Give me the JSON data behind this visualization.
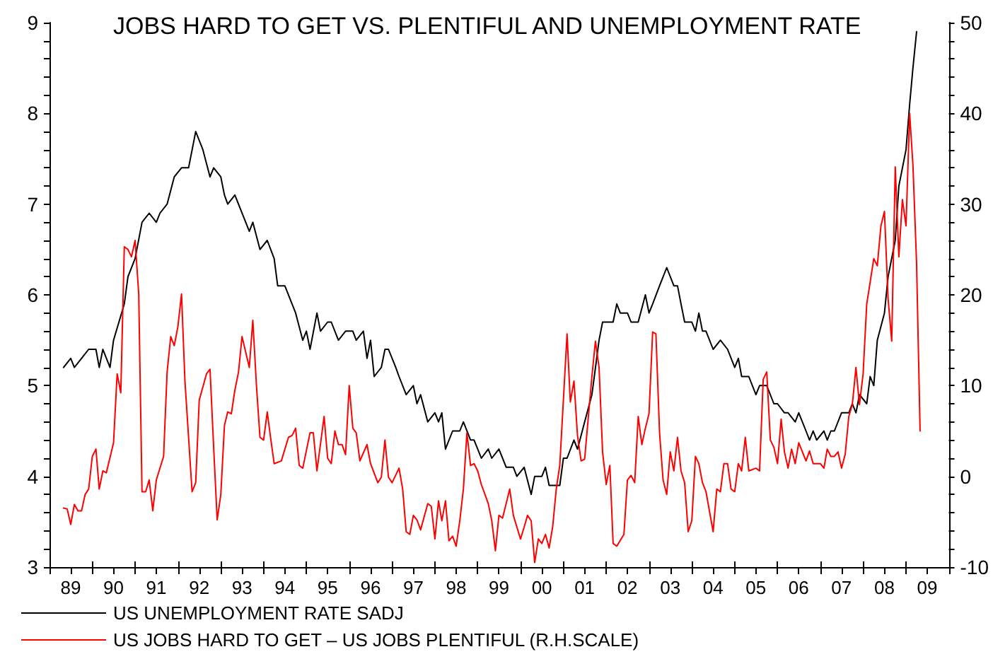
{
  "chart_data": {
    "type": "line",
    "title": "JOBS HARD TO GET VS. PLENTIFUL AND UNEMPLOYMENT RATE",
    "xlim": [
      "1989-01",
      "2010-01"
    ],
    "xticks": [
      {
        "value": "1989-01",
        "label": null
      },
      {
        "value": "1989-07",
        "label": "89"
      },
      {
        "value": "1990-01",
        "label": null
      },
      {
        "value": "1990-07",
        "label": "90"
      },
      {
        "value": "1991-01",
        "label": null
      },
      {
        "value": "1991-07",
        "label": "91"
      },
      {
        "value": "1992-01",
        "label": null
      },
      {
        "value": "1992-07",
        "label": "92"
      },
      {
        "value": "1993-01",
        "label": null
      },
      {
        "value": "1993-07",
        "label": "93"
      },
      {
        "value": "1994-01",
        "label": null
      },
      {
        "value": "1994-07",
        "label": "94"
      },
      {
        "value": "1995-01",
        "label": null
      },
      {
        "value": "1995-07",
        "label": "95"
      },
      {
        "value": "1996-01",
        "label": null
      },
      {
        "value": "1996-07",
        "label": "96"
      },
      {
        "value": "1997-01",
        "label": null
      },
      {
        "value": "1997-07",
        "label": "97"
      },
      {
        "value": "1998-01",
        "label": null
      },
      {
        "value": "1998-07",
        "label": "98"
      },
      {
        "value": "1999-01",
        "label": null
      },
      {
        "value": "1999-07",
        "label": "99"
      },
      {
        "value": "2000-01",
        "label": null
      },
      {
        "value": "2000-07",
        "label": "00"
      },
      {
        "value": "2001-01",
        "label": null
      },
      {
        "value": "2001-07",
        "label": "01"
      },
      {
        "value": "2002-01",
        "label": null
      },
      {
        "value": "2002-07",
        "label": "02"
      },
      {
        "value": "2003-01",
        "label": null
      },
      {
        "value": "2003-07",
        "label": "03"
      },
      {
        "value": "2004-01",
        "label": null
      },
      {
        "value": "2004-07",
        "label": "04"
      },
      {
        "value": "2005-01",
        "label": null
      },
      {
        "value": "2005-07",
        "label": "05"
      },
      {
        "value": "2006-01",
        "label": null
      },
      {
        "value": "2006-07",
        "label": "06"
      },
      {
        "value": "2007-01",
        "label": null
      },
      {
        "value": "2007-07",
        "label": "07"
      },
      {
        "value": "2008-01",
        "label": null
      },
      {
        "value": "2008-07",
        "label": "08"
      },
      {
        "value": "2009-01",
        "label": null
      },
      {
        "value": "2009-07",
        "label": "09"
      },
      {
        "value": "2010-01",
        "label": null
      }
    ],
    "ylim": [
      3,
      9
    ],
    "yticks": [
      3,
      {
        "value": 3.2,
        "label": null
      },
      {
        "value": 3.4,
        "label": null
      },
      {
        "value": 3.6,
        "label": null
      },
      {
        "value": 3.8,
        "label": null
      },
      4,
      {
        "value": 4.2,
        "label": null
      },
      {
        "value": 4.4,
        "label": null
      },
      {
        "value": 4.6,
        "label": null
      },
      {
        "value": 4.8,
        "label": null
      },
      5,
      {
        "value": 5.2,
        "label": null
      },
      {
        "value": 5.4,
        "label": null
      },
      {
        "value": 5.6,
        "label": null
      },
      {
        "value": 5.8,
        "label": null
      },
      6,
      {
        "value": 6.2,
        "label": null
      },
      {
        "value": 6.4,
        "label": null
      },
      {
        "value": 6.6,
        "label": null
      },
      {
        "value": 6.8,
        "label": null
      },
      7,
      {
        "value": 7.2,
        "label": null
      },
      {
        "value": 7.4,
        "label": null
      },
      {
        "value": 7.6,
        "label": null
      },
      {
        "value": 7.8,
        "label": null
      },
      8,
      {
        "value": 8.2,
        "label": null
      },
      {
        "value": 8.4,
        "label": null
      },
      {
        "value": 8.6,
        "label": null
      },
      {
        "value": 8.8,
        "label": null
      },
      9
    ],
    "y2lim": [
      -10,
      50
    ],
    "y2ticks": [
      -10,
      {
        "value": -8,
        "label": null
      },
      {
        "value": -6,
        "label": null
      },
      {
        "value": -4,
        "label": null
      },
      {
        "value": -2,
        "label": null
      },
      0,
      {
        "value": 2,
        "label": null
      },
      {
        "value": 4,
        "label": null
      },
      {
        "value": 6,
        "label": null
      },
      {
        "value": 8,
        "label": null
      },
      10,
      {
        "value": 12,
        "label": null
      },
      {
        "value": 14,
        "label": null
      },
      {
        "value": 16,
        "label": null
      },
      {
        "value": 18,
        "label": null
      },
      20,
      {
        "value": 22,
        "label": null
      },
      {
        "value": 24,
        "label": null
      },
      {
        "value": 26,
        "label": null
      },
      {
        "value": 28,
        "label": null
      },
      30,
      {
        "value": 32,
        "label": null
      },
      {
        "value": 34,
        "label": null
      },
      {
        "value": 36,
        "label": null
      },
      {
        "value": 38,
        "label": null
      },
      40,
      {
        "value": 42,
        "label": null
      },
      {
        "value": 44,
        "label": null
      },
      {
        "value": 46,
        "label": null
      },
      {
        "value": 48,
        "label": null
      },
      50
    ],
    "grid": false,
    "legend": "bottom left",
    "marker": "none",
    "line_style": "solid",
    "series": [
      {
        "name": "US UNEMPLOYMENT RATE SADJ",
        "color": "#000000",
        "x": [
          "1989-05",
          "1989-07",
          "1989-08",
          "1989-10",
          "1989-12",
          "1990-02",
          "1990-03",
          "1990-04",
          "1990-06",
          "1990-07",
          "1990-10",
          "1990-11",
          "1991-01",
          "1991-03",
          "1991-05",
          "1991-07",
          "1991-08",
          "1991-10",
          "1991-12",
          "1992-02",
          "1992-04",
          "1992-06",
          "1992-08",
          "1992-10",
          "1992-11",
          "1993-01",
          "1993-02",
          "1993-03",
          "1993-05",
          "1993-09",
          "1993-10",
          "1993-12",
          "1994-02",
          "1994-04",
          "1994-05",
          "1994-07",
          "1994-10",
          "1994-12",
          "1995-01",
          "1995-02",
          "1995-04",
          "1995-05",
          "1995-07",
          "1995-08",
          "1995-10",
          "1995-12",
          "1996-02",
          "1996-03",
          "1996-05",
          "1996-06",
          "1996-07",
          "1996-08",
          "1996-10",
          "1996-11",
          "1996-12",
          "1997-02",
          "1997-03",
          "1997-05",
          "1997-07",
          "1997-08",
          "1997-09",
          "1997-11",
          "1998-01",
          "1998-02",
          "1998-03",
          "1998-04",
          "1998-06",
          "1998-08",
          "1998-09",
          "1998-11",
          "1998-12",
          "1999-01",
          "1999-02",
          "1999-04",
          "1999-05",
          "1999-07",
          "1999-09",
          "1999-11",
          "1999-12",
          "2000-02",
          "2000-04",
          "2000-05",
          "2000-07",
          "2000-08",
          "2000-09",
          "2000-12",
          "2001-01",
          "2001-02",
          "2001-04",
          "2001-05",
          "2001-07",
          "2001-09",
          "2001-11",
          "2001-12",
          "2002-03",
          "2002-04",
          "2002-05",
          "2002-07",
          "2002-08",
          "2002-10",
          "2002-12",
          "2003-01",
          "2003-02",
          "2003-04",
          "2003-06",
          "2003-08",
          "2003-09",
          "2003-10",
          "2003-11",
          "2004-01",
          "2004-02",
          "2004-03",
          "2004-04",
          "2004-05",
          "2004-07",
          "2004-09",
          "2004-11",
          "2005-01",
          "2005-02",
          "2005-03",
          "2005-05",
          "2005-07",
          "2005-08",
          "2005-10",
          "2005-12",
          "2006-01",
          "2006-03",
          "2006-04",
          "2006-06",
          "2006-07",
          "2006-09",
          "2006-10",
          "2006-11",
          "2006-12",
          "2007-02",
          "2007-03",
          "2007-04",
          "2007-05",
          "2007-07",
          "2007-09",
          "2007-10",
          "2007-11",
          "2007-12",
          "2008-02",
          "2008-03",
          "2008-04",
          "2008-05",
          "2008-07",
          "2008-08",
          "2008-10",
          "2008-11",
          "2009-01",
          "2009-02",
          "2009-03",
          "2009-04"
        ],
        "values": [
          5.2,
          5.3,
          5.2,
          5.3,
          5.4,
          5.4,
          5.2,
          5.4,
          5.2,
          5.5,
          5.9,
          6.2,
          6.4,
          6.8,
          6.9,
          6.8,
          6.9,
          7.0,
          7.3,
          7.4,
          7.4,
          7.8,
          7.6,
          7.3,
          7.4,
          7.3,
          7.1,
          7.0,
          7.1,
          6.7,
          6.8,
          6.5,
          6.6,
          6.4,
          6.1,
          6.1,
          5.8,
          5.5,
          5.6,
          5.4,
          5.8,
          5.6,
          5.7,
          5.7,
          5.5,
          5.6,
          5.6,
          5.5,
          5.6,
          5.3,
          5.5,
          5.1,
          5.2,
          5.4,
          5.4,
          5.2,
          5.1,
          4.9,
          5.0,
          4.8,
          4.9,
          4.6,
          4.7,
          4.6,
          4.7,
          4.3,
          4.5,
          4.5,
          4.6,
          4.4,
          4.4,
          4.3,
          4.2,
          4.3,
          4.2,
          4.3,
          4.1,
          4.1,
          4.0,
          4.1,
          3.8,
          4.0,
          4.0,
          4.1,
          3.9,
          3.9,
          4.2,
          4.2,
          4.4,
          4.3,
          4.6,
          4.9,
          5.5,
          5.7,
          5.7,
          5.9,
          5.8,
          5.8,
          5.7,
          5.7,
          6.0,
          5.8,
          5.9,
          6.1,
          6.3,
          6.1,
          6.1,
          5.9,
          5.7,
          5.7,
          5.6,
          5.8,
          5.6,
          5.6,
          5.4,
          5.5,
          5.4,
          5.2,
          5.3,
          5.1,
          5.1,
          4.9,
          5.0,
          5.0,
          4.8,
          4.8,
          4.7,
          4.7,
          4.6,
          4.7,
          4.5,
          4.4,
          4.5,
          4.4,
          4.5,
          4.4,
          4.5,
          4.5,
          4.7,
          4.7,
          4.8,
          4.7,
          4.9,
          4.8,
          5.1,
          5.0,
          5.5,
          5.8,
          6.2,
          6.6,
          7.2,
          7.6,
          8.1,
          8.5,
          8.9
        ]
      },
      {
        "name": "US JOBS HARD TO GET – US JOBS PLENTIFUL (R.H.SCALE)",
        "color": "#ff0000",
        "axis": "y2",
        "x": [
          "1989-05",
          "1989-06",
          "1989-07",
          "1989-08",
          "1989-09",
          "1989-10",
          "1989-11",
          "1989-12",
          "1990-01",
          "1990-02",
          "1990-03",
          "1990-04",
          "1990-05",
          "1990-07",
          "1990-08",
          "1990-09",
          "1990-10",
          "1990-11",
          "1990-12",
          "1991-01",
          "1991-02",
          "1991-03",
          "1991-04",
          "1991-05",
          "1991-06",
          "1991-07",
          "1991-09",
          "1991-10",
          "1991-11",
          "1991-12",
          "1992-01",
          "1992-02",
          "1992-03",
          "1992-05",
          "1992-06",
          "1992-07",
          "1992-09",
          "1992-10",
          "1992-11",
          "1992-12",
          "1993-01",
          "1993-02",
          "1993-03",
          "1993-04",
          "1993-05",
          "1993-06",
          "1993-07",
          "1993-09",
          "1993-10",
          "1993-11",
          "1993-12",
          "1994-01",
          "1994-02",
          "1994-03",
          "1994-04",
          "1994-06",
          "1994-08",
          "1994-09",
          "1994-10",
          "1994-11",
          "1994-12",
          "1995-02",
          "1995-03",
          "1995-04",
          "1995-06",
          "1995-07",
          "1995-08",
          "1995-09",
          "1995-10",
          "1995-11",
          "1995-12",
          "1996-01",
          "1996-02",
          "1996-03",
          "1996-04",
          "1996-06",
          "1996-07",
          "1996-09",
          "1996-10",
          "1996-11",
          "1996-12",
          "1997-01",
          "1997-03",
          "1997-04",
          "1997-05",
          "1997-06",
          "1997-07",
          "1997-08",
          "1997-09",
          "1997-11",
          "1997-12",
          "1998-01",
          "1998-02",
          "1998-03",
          "1998-04",
          "1998-05",
          "1998-06",
          "1998-07",
          "1998-08",
          "1998-09",
          "1998-10",
          "1998-11",
          "1998-12",
          "1999-01",
          "1999-02",
          "1999-04",
          "1999-05",
          "1999-06",
          "1999-07",
          "1999-08",
          "1999-10",
          "1999-11",
          "2000-01",
          "2000-02",
          "2000-03",
          "2000-04",
          "2000-05",
          "2000-06",
          "2000-07",
          "2000-08",
          "2000-09",
          "2000-10",
          "2000-11",
          "2000-12",
          "2001-02",
          "2001-03",
          "2001-04",
          "2001-05",
          "2001-06",
          "2001-07",
          "2001-09",
          "2001-10",
          "2001-11",
          "2001-12",
          "2002-01",
          "2002-02",
          "2002-03",
          "2002-04",
          "2002-06",
          "2002-07",
          "2002-08",
          "2002-09",
          "2002-10",
          "2002-11",
          "2002-12",
          "2003-01",
          "2003-02",
          "2003-03",
          "2003-04",
          "2003-05",
          "2003-06",
          "2003-07",
          "2003-08",
          "2003-09",
          "2003-10",
          "2003-11",
          "2003-12",
          "2004-01",
          "2004-02",
          "2004-03",
          "2004-04",
          "2004-05",
          "2004-07",
          "2004-08",
          "2004-09",
          "2004-10",
          "2004-11",
          "2004-12",
          "2005-01",
          "2005-02",
          "2005-03",
          "2005-04",
          "2005-05",
          "2005-07",
          "2005-08",
          "2005-09",
          "2005-10",
          "2005-11",
          "2005-12",
          "2006-01",
          "2006-02",
          "2006-03",
          "2006-04",
          "2006-05",
          "2006-06",
          "2006-07",
          "2006-09",
          "2006-10",
          "2006-11",
          "2007-01",
          "2007-02",
          "2007-03",
          "2007-04",
          "2007-05",
          "2007-06",
          "2007-07",
          "2007-08",
          "2007-09",
          "2007-10",
          "2007-11",
          "2007-12",
          "2008-01",
          "2008-02",
          "2008-03",
          "2008-04",
          "2008-05",
          "2008-06",
          "2008-07",
          "2008-08",
          "2008-09",
          "2008-10",
          "2008-11",
          "2008-12",
          "2009-01",
          "2009-02",
          "2009-03",
          "2009-04",
          "2009-05"
        ],
        "values": [
          -3.5,
          -3.6,
          -5.3,
          -3.1,
          -3.8,
          -3.8,
          -2.0,
          -1.4,
          2.2,
          3.0,
          -1.4,
          0.6,
          0.4,
          3.7,
          11.3,
          9.2,
          25.3,
          25.0,
          24.2,
          26.0,
          20.1,
          -1.7,
          -1.7,
          -0.4,
          -3.8,
          -0.4,
          2.2,
          11.5,
          15.4,
          14.4,
          16.5,
          20.1,
          10.5,
          -1.7,
          -0.7,
          8.4,
          11.3,
          11.8,
          3.2,
          -4.8,
          -2.0,
          5.6,
          7.1,
          6.9,
          9.5,
          11.5,
          15.4,
          12.0,
          17.2,
          10.0,
          4.3,
          4.0,
          7.1,
          4.3,
          1.4,
          1.7,
          4.3,
          4.5,
          5.3,
          1.2,
          0.9,
          4.8,
          4.8,
          0.6,
          6.6,
          2.0,
          1.4,
          5.0,
          3.5,
          3.5,
          2.4,
          10.0,
          5.3,
          4.8,
          1.7,
          3.5,
          1.4,
          -0.7,
          -0.1,
          4.0,
          -0.1,
          -0.7,
          0.9,
          -1.4,
          -6.1,
          -6.4,
          -4.3,
          -4.8,
          -5.9,
          -3.0,
          -3.3,
          -6.9,
          -2.7,
          -4.9,
          -2.7,
          -7.1,
          -6.6,
          -7.7,
          -4.9,
          -1.4,
          4.8,
          1.2,
          1.4,
          0.6,
          -0.9,
          -3.0,
          -4.9,
          -8.2,
          -4.3,
          -4.6,
          -1.4,
          -4.3,
          -6.9,
          -5.6,
          -4.3,
          -4.9,
          -9.5,
          -6.9,
          -7.4,
          -6.4,
          -7.9,
          -5.6,
          -1.4,
          1.2,
          15.7,
          8.2,
          10.5,
          4.5,
          1.7,
          1.9,
          11.0,
          14.9,
          12.0,
          2.7,
          -0.9,
          1.2,
          -7.4,
          -7.7,
          -6.4,
          -0.4,
          0.1,
          -0.7,
          6.6,
          3.5,
          5.3,
          6.9,
          15.9,
          15.7,
          4.8,
          -0.4,
          -2.0,
          2.7,
          0.6,
          4.3,
          0.6,
          -0.7,
          -6.1,
          -4.9,
          2.2,
          1.4,
          -0.7,
          -1.7,
          -6.1,
          -1.4,
          -1.7,
          1.4,
          1.4,
          -1.4,
          -1.7,
          1.4,
          0.6,
          4.3,
          0.6,
          0.9,
          0.6,
          10.7,
          11.5,
          4.0,
          3.2,
          1.4,
          6.3,
          2.7,
          0.9,
          3.0,
          1.4,
          3.7,
          1.7,
          2.8,
          1.4,
          1.4,
          0.9,
          3.0,
          2.2,
          2.2,
          2.7,
          0.9,
          2.4,
          6.6,
          7.9,
          12.0,
          7.9,
          11.3,
          19.0,
          21.4,
          24.0,
          23.2,
          27.6,
          29.2,
          19.6,
          14.9,
          34.1,
          24.2,
          30.5,
          27.6,
          40.0,
          34.3,
          23.5,
          5.0
        ]
      }
    ]
  }
}
